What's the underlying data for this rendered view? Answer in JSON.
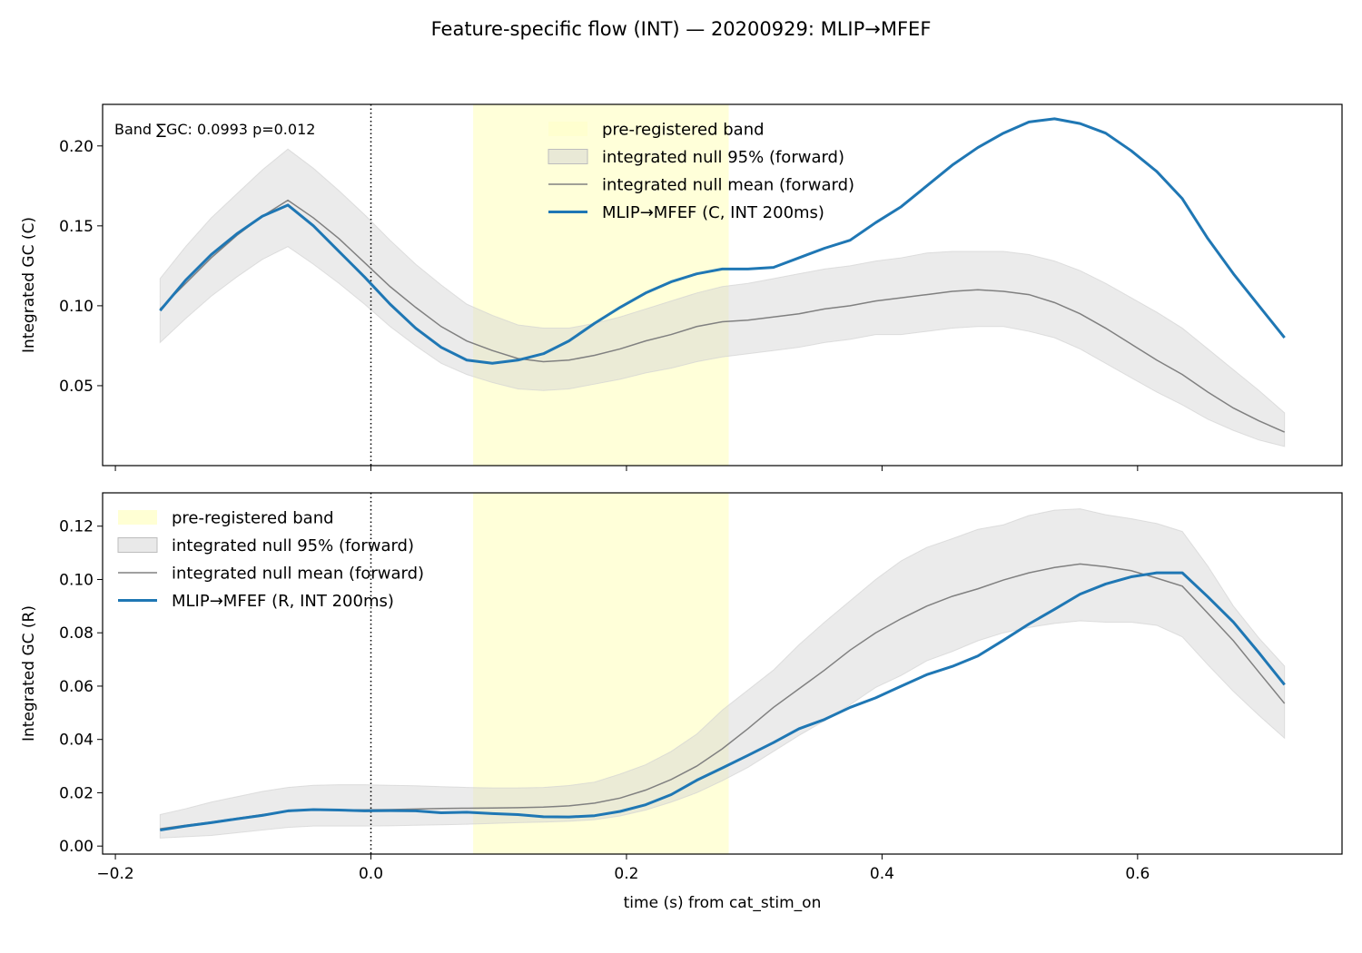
{
  "title": "Feature-specific flow (INT) — 20200929: MLIP→MFEF",
  "colors": {
    "observed": "#1f77b4",
    "null_mean": "#808080",
    "null_band": "#d3d3d3",
    "prereg_band": "#ffffcc"
  },
  "chart_data": [
    {
      "type": "line",
      "xlabel": "",
      "ylabel": "Integrated GC (C)",
      "xlim": [
        -0.21,
        0.76
      ],
      "ylim": [
        0.0,
        0.226
      ],
      "yticks": [
        0.05,
        0.1,
        0.15,
        0.2
      ],
      "ytick_labels": [
        "0.05",
        "0.10",
        "0.15",
        "0.20"
      ],
      "xticks": [
        -0.2,
        0.0,
        0.2,
        0.4,
        0.6
      ],
      "xtick_labels": [
        "",
        "",
        "",
        "",
        ""
      ],
      "stim_onset": 0.0,
      "prereg_band": [
        0.08,
        0.28
      ],
      "annotation": "Band ∑GC: 0.0993  p=0.012",
      "legend_position": "upper center",
      "legend": [
        "pre-registered band",
        "integrated null 95% (forward)",
        "integrated null mean (forward)",
        "MLIP→MFEF (C, INT 200ms)"
      ],
      "x": [
        -0.165,
        -0.145,
        -0.125,
        -0.105,
        -0.085,
        -0.065,
        -0.045,
        -0.025,
        -0.005,
        0.015,
        0.035,
        0.055,
        0.075,
        0.095,
        0.115,
        0.135,
        0.155,
        0.175,
        0.195,
        0.215,
        0.235,
        0.255,
        0.275,
        0.295,
        0.315,
        0.335,
        0.355,
        0.375,
        0.395,
        0.415,
        0.435,
        0.455,
        0.475,
        0.495,
        0.515,
        0.535,
        0.555,
        0.575,
        0.595,
        0.615,
        0.635,
        0.655,
        0.675,
        0.695,
        0.715
      ],
      "series": [
        {
          "name": "MLIP→MFEF (C, INT 200ms)",
          "role": "observed",
          "values": [
            0.097,
            0.116,
            0.132,
            0.145,
            0.156,
            0.163,
            0.15,
            0.134,
            0.118,
            0.101,
            0.086,
            0.074,
            0.066,
            0.064,
            0.066,
            0.07,
            0.078,
            0.089,
            0.099,
            0.108,
            0.115,
            0.12,
            0.123,
            0.123,
            0.124,
            0.13,
            0.136,
            0.141,
            0.152,
            0.162,
            0.175,
            0.188,
            0.199,
            0.208,
            0.215,
            0.217,
            0.214,
            0.208,
            0.197,
            0.184,
            0.167,
            0.142,
            0.12,
            0.1,
            0.08
          ]
        },
        {
          "name": "integrated null mean (forward)",
          "role": "null_mean",
          "values": [
            0.098,
            0.114,
            0.13,
            0.144,
            0.156,
            0.166,
            0.155,
            0.142,
            0.127,
            0.112,
            0.099,
            0.087,
            0.078,
            0.072,
            0.067,
            0.065,
            0.066,
            0.069,
            0.073,
            0.078,
            0.082,
            0.087,
            0.09,
            0.091,
            0.093,
            0.095,
            0.098,
            0.1,
            0.103,
            0.105,
            0.107,
            0.109,
            0.11,
            0.109,
            0.107,
            0.102,
            0.095,
            0.086,
            0.076,
            0.066,
            0.057,
            0.046,
            0.036,
            0.028,
            0.021
          ]
        },
        {
          "name": "integrated null 95% (forward) upper",
          "role": "null_hi",
          "values": [
            0.117,
            0.137,
            0.155,
            0.17,
            0.185,
            0.198,
            0.186,
            0.172,
            0.157,
            0.141,
            0.126,
            0.113,
            0.101,
            0.094,
            0.088,
            0.086,
            0.086,
            0.089,
            0.093,
            0.098,
            0.103,
            0.108,
            0.112,
            0.114,
            0.117,
            0.12,
            0.123,
            0.125,
            0.128,
            0.13,
            0.133,
            0.134,
            0.134,
            0.134,
            0.132,
            0.128,
            0.122,
            0.114,
            0.105,
            0.096,
            0.086,
            0.073,
            0.06,
            0.047,
            0.033
          ]
        },
        {
          "name": "integrated null 95% (forward) lower",
          "role": "null_lo",
          "values": [
            0.077,
            0.092,
            0.106,
            0.118,
            0.129,
            0.137,
            0.126,
            0.114,
            0.101,
            0.087,
            0.075,
            0.064,
            0.057,
            0.052,
            0.048,
            0.047,
            0.048,
            0.051,
            0.054,
            0.058,
            0.061,
            0.065,
            0.068,
            0.07,
            0.072,
            0.074,
            0.077,
            0.079,
            0.082,
            0.082,
            0.084,
            0.086,
            0.087,
            0.087,
            0.084,
            0.08,
            0.073,
            0.064,
            0.055,
            0.046,
            0.038,
            0.029,
            0.022,
            0.016,
            0.012
          ]
        }
      ]
    },
    {
      "type": "line",
      "xlabel": "time (s) from cat_stim_on",
      "ylabel": "Integrated GC (R)",
      "xlim": [
        -0.21,
        0.76
      ],
      "ylim": [
        -0.003,
        0.1325
      ],
      "yticks": [
        0.0,
        0.02,
        0.04,
        0.06,
        0.08,
        0.1,
        0.12
      ],
      "ytick_labels": [
        "0.00",
        "0.02",
        "0.04",
        "0.06",
        "0.08",
        "0.10",
        "0.12"
      ],
      "xticks": [
        -0.2,
        0.0,
        0.2,
        0.4,
        0.6
      ],
      "xtick_labels": [
        "−0.2",
        "0.0",
        "0.2",
        "0.4",
        "0.6"
      ],
      "stim_onset": 0.0,
      "prereg_band": [
        0.08,
        0.28
      ],
      "legend_position": "upper left",
      "legend": [
        "pre-registered band",
        "integrated null 95% (forward)",
        "integrated null mean (forward)",
        "MLIP→MFEF (R, INT 200ms)"
      ],
      "x": [
        -0.165,
        -0.145,
        -0.125,
        -0.105,
        -0.085,
        -0.065,
        -0.045,
        -0.025,
        -0.005,
        0.015,
        0.035,
        0.055,
        0.075,
        0.095,
        0.115,
        0.135,
        0.155,
        0.175,
        0.195,
        0.215,
        0.235,
        0.255,
        0.275,
        0.295,
        0.315,
        0.335,
        0.355,
        0.375,
        0.395,
        0.415,
        0.435,
        0.455,
        0.475,
        0.495,
        0.515,
        0.535,
        0.555,
        0.575,
        0.595,
        0.615,
        0.635,
        0.655,
        0.675,
        0.695,
        0.715
      ],
      "series": [
        {
          "name": "MLIP→MFEF (R, INT 200ms)",
          "role": "observed",
          "values": [
            0.006,
            0.0075,
            0.0088,
            0.0102,
            0.0115,
            0.0132,
            0.0137,
            0.0135,
            0.0132,
            0.0133,
            0.0132,
            0.0125,
            0.0127,
            0.0122,
            0.0118,
            0.011,
            0.0109,
            0.0114,
            0.013,
            0.0155,
            0.0193,
            0.0247,
            0.0293,
            0.034,
            0.0388,
            0.044,
            0.0475,
            0.052,
            0.0556,
            0.06,
            0.0643,
            0.0674,
            0.0713,
            0.0772,
            0.0833,
            0.0888,
            0.0945,
            0.0983,
            0.101,
            0.1025,
            0.1025,
            0.0935,
            0.084,
            0.0725,
            0.0605
          ]
        },
        {
          "name": "integrated null mean (forward)",
          "role": "null_mean",
          "values": [
            0.0065,
            0.0078,
            0.009,
            0.0104,
            0.0118,
            0.013,
            0.0136,
            0.0136,
            0.0136,
            0.0137,
            0.0139,
            0.0141,
            0.0142,
            0.0143,
            0.0144,
            0.0146,
            0.0151,
            0.0161,
            0.018,
            0.021,
            0.025,
            0.03,
            0.0365,
            0.044,
            0.052,
            0.059,
            0.066,
            0.0735,
            0.08,
            0.0853,
            0.09,
            0.0937,
            0.0965,
            0.0998,
            0.1025,
            0.1045,
            0.1058,
            0.1048,
            0.1033,
            0.1005,
            0.0975,
            0.0873,
            0.077,
            0.0652,
            0.0535
          ]
        },
        {
          "name": "integrated null 95% (forward) upper",
          "role": "null_hi",
          "values": [
            0.0118,
            0.014,
            0.0165,
            0.0185,
            0.0205,
            0.022,
            0.0228,
            0.023,
            0.023,
            0.0228,
            0.0226,
            0.0223,
            0.022,
            0.0218,
            0.0218,
            0.022,
            0.0227,
            0.024,
            0.027,
            0.0305,
            0.0355,
            0.042,
            0.051,
            0.0585,
            0.066,
            0.0755,
            0.084,
            0.092,
            0.1,
            0.107,
            0.112,
            0.1153,
            0.1188,
            0.1205,
            0.124,
            0.126,
            0.1265,
            0.1243,
            0.1228,
            0.121,
            0.118,
            0.105,
            0.09,
            0.078,
            0.0675
          ]
        },
        {
          "name": "integrated null 95% (forward) lower",
          "role": "null_lo",
          "values": [
            0.003,
            0.0035,
            0.004,
            0.005,
            0.006,
            0.007,
            0.0075,
            0.0075,
            0.0075,
            0.0076,
            0.0078,
            0.008,
            0.0082,
            0.0085,
            0.0088,
            0.009,
            0.0093,
            0.0099,
            0.0113,
            0.0135,
            0.0165,
            0.02,
            0.0245,
            0.0295,
            0.0355,
            0.0415,
            0.047,
            0.053,
            0.0595,
            0.064,
            0.0695,
            0.073,
            0.077,
            0.08,
            0.082,
            0.0835,
            0.0845,
            0.084,
            0.084,
            0.0828,
            0.0785,
            0.068,
            0.058,
            0.049,
            0.0405
          ]
        }
      ]
    }
  ]
}
